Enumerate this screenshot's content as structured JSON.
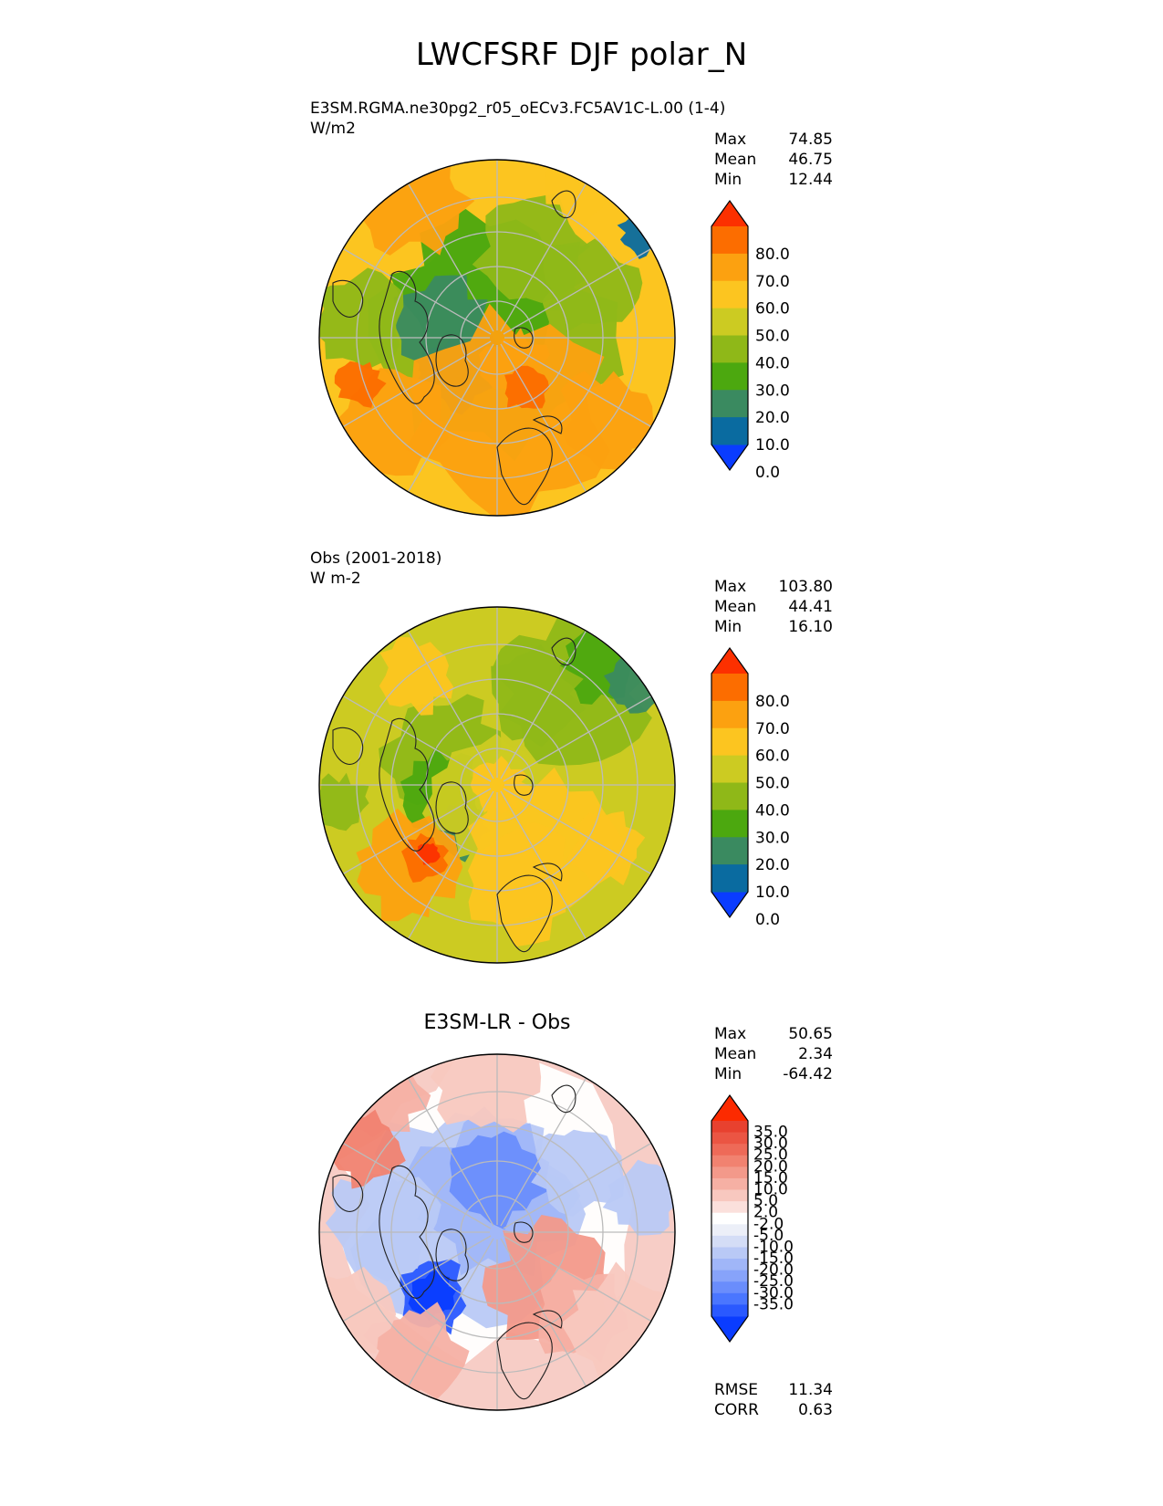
{
  "figure": {
    "title": "LWCFSRF DJF polar_N"
  },
  "colors": {
    "abs_scale": [
      "#0a3cff",
      "#0a6ba0",
      "#3a8a60",
      "#4ca80f",
      "#8fb818",
      "#cccb22",
      "#fcc520",
      "#fca110",
      "#fc6d00",
      "#fc3000"
    ],
    "diff_scale": [
      "#0a3cff",
      "#2a59ff",
      "#4a76ff",
      "#6a8dfc",
      "#87a3fa",
      "#a0b6f8",
      "#b9c9f6",
      "#d4ddf6",
      "#eceff8",
      "#ffffff",
      "#fbe0dc",
      "#f8c8bf",
      "#f6b0a4",
      "#f3998a",
      "#f18270",
      "#ee6a58",
      "#eb5543",
      "#e8412f",
      "#fc2a00"
    ],
    "grid": "#bbbbbb"
  },
  "chart_data": [
    {
      "type": "heatmap",
      "projection": "north-polar-stereographic",
      "title_line1": "E3SM.RGMA.ne30pg2_r05_oECv3.FC5AV1C-L.00 (1-4)",
      "title_line2": "W/m2",
      "stats": {
        "max_label": "Max",
        "max": "74.85",
        "mean_label": "Mean",
        "mean": "46.75",
        "min_label": "Min",
        "min": "12.44"
      },
      "colorbar_ticks": [
        "80.0",
        "70.0",
        "60.0",
        "50.0",
        "40.0",
        "30.0",
        "20.0",
        "10.0",
        "0.0"
      ]
    },
    {
      "type": "heatmap",
      "projection": "north-polar-stereographic",
      "title_line1": "Obs (2001-2018)",
      "title_line2": "W m-2",
      "stats": {
        "max_label": "Max",
        "max": "103.80",
        "mean_label": "Mean",
        "mean": "44.41",
        "min_label": "Min",
        "min": "16.10"
      },
      "colorbar_ticks": [
        "80.0",
        "70.0",
        "60.0",
        "50.0",
        "40.0",
        "30.0",
        "20.0",
        "10.0",
        "0.0"
      ]
    },
    {
      "type": "heatmap",
      "projection": "north-polar-stereographic",
      "title": "E3SM-LR - Obs",
      "stats": {
        "max_label": "Max",
        "max": "50.65",
        "mean_label": "Mean",
        "mean": "2.34",
        "min_label": "Min",
        "min": "-64.42"
      },
      "colorbar_ticks": [
        "35.0",
        "30.0",
        "25.0",
        "20.0",
        "15.0",
        "10.0",
        "5.0",
        "2.0",
        "-2.0",
        "-5.0",
        "-10.0",
        "-15.0",
        "-20.0",
        "-25.0",
        "-30.0",
        "-35.0"
      ],
      "metrics": {
        "rmse_label": "RMSE",
        "rmse": "11.34",
        "corr_label": "CORR",
        "corr": "0.63"
      }
    }
  ]
}
